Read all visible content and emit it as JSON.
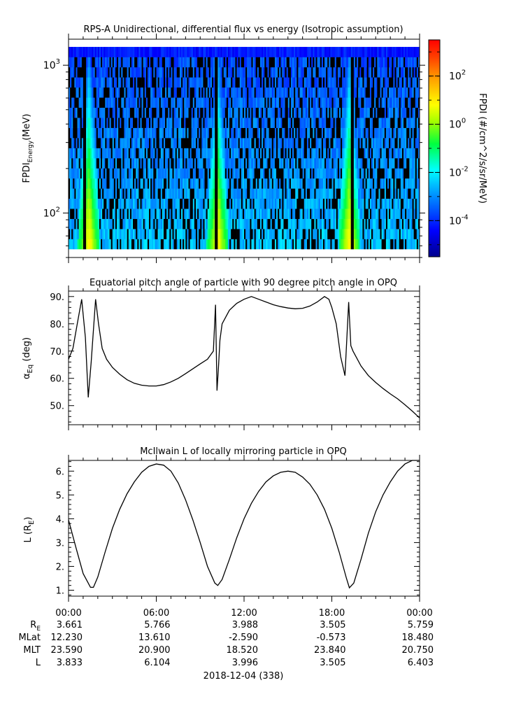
{
  "chart_data": [
    {
      "type": "heatmap",
      "title": "RPS-A Unidirectional, differential flux vs energy (Isotropic assumption)",
      "ylabel_main": "FPDI",
      "ylabel_sub": "Energy",
      "ylabel_unit": "(MeV)",
      "yscale": "log",
      "ylim": [
        50,
        1500
      ],
      "y_ticks": [
        {
          "value": 100,
          "base": "10",
          "exp": "2"
        },
        {
          "value": 1000,
          "base": "10",
          "exp": "3"
        }
      ],
      "colorbar": {
        "label": "FPDI (#/cm^2/s/sr/MeV)",
        "scale": "log",
        "range_log10": [
          -5.5,
          3.5
        ],
        "ticks": [
          {
            "value": 2,
            "base": "10",
            "exp": "2"
          },
          {
            "value": 0,
            "base": "10",
            "exp": "0"
          },
          {
            "value": -2,
            "base": "10",
            "exp": "-2"
          },
          {
            "value": -4,
            "base": "10",
            "exp": "-4"
          }
        ]
      },
      "energy_channels": 20,
      "time_bins": 240,
      "enhancement_times_hours": [
        1.4,
        10.2,
        19.2
      ],
      "gap_times_hours": [
        1.1,
        10.1,
        19.4
      ],
      "background_level_log10": -2.5
    },
    {
      "type": "line",
      "title": "Equatorial pitch angle of particle with 90 degree pitch angle in OPQ",
      "ylabel_main": "α",
      "ylabel_sub": "Eq",
      "ylabel_unit": " (deg)",
      "ylim": [
        43,
        92
      ],
      "y_ticks": [
        "50.",
        "60.",
        "70.",
        "80.",
        "90."
      ],
      "x_hours": [
        0,
        0.3,
        0.6,
        0.9,
        1.15,
        1.35,
        1.55,
        1.85,
        2.05,
        2.3,
        2.6,
        3,
        3.5,
        4,
        4.5,
        5,
        5.5,
        6,
        6.5,
        7,
        7.5,
        8,
        8.5,
        9,
        9.5,
        9.9,
        10.05,
        10.15,
        10.25,
        10.35,
        10.5,
        11,
        11.5,
        12,
        12.5,
        13,
        13.5,
        14,
        14.5,
        15,
        15.5,
        16,
        16.5,
        17,
        17.5,
        17.8,
        18,
        18.3,
        18.6,
        18.9,
        19.15,
        19.3,
        19.45,
        19.55,
        20,
        20.5,
        21,
        21.5,
        22,
        22.5,
        23,
        23.5,
        24
      ],
      "y_deg": [
        67,
        71,
        80,
        89,
        75,
        53,
        66,
        89,
        80,
        71,
        67,
        64,
        61.5,
        59.5,
        58.2,
        57.5,
        57.2,
        57.2,
        57.7,
        58.7,
        60,
        61.7,
        63.5,
        65.3,
        67,
        70,
        87,
        55.5,
        64,
        74,
        80,
        85,
        87.5,
        89,
        90,
        89,
        88,
        87,
        86.3,
        85.8,
        85.5,
        85.7,
        86.5,
        88,
        90,
        89,
        86,
        80,
        68,
        61,
        88,
        72,
        70,
        69,
        64.5,
        61,
        58.5,
        56.3,
        54.3,
        52.5,
        50.3,
        48,
        45.5
      ]
    },
    {
      "type": "line",
      "title": "McIlwain L of locally mirroring particle in OPQ",
      "ylabel_main": "L (R",
      "ylabel_sub": "E",
      "ylabel_unit": ")",
      "ylim": [
        0.75,
        6.45
      ],
      "y_ticks": [
        "1.",
        "2.",
        "3.",
        "4.",
        "5.",
        "6."
      ],
      "x_hours": [
        0,
        0.5,
        1,
        1.5,
        1.7,
        2,
        2.5,
        3,
        3.5,
        4,
        4.5,
        5,
        5.5,
        6,
        6.5,
        7,
        7.5,
        8,
        8.5,
        9,
        9.5,
        10,
        10.2,
        10.5,
        11,
        11.5,
        12,
        12.5,
        13,
        13.5,
        14,
        14.5,
        15,
        15.5,
        16,
        16.5,
        17,
        17.5,
        18,
        18.5,
        19,
        19.2,
        19.5,
        20,
        20.5,
        21,
        21.5,
        22,
        22.5,
        23,
        23.5,
        24
      ],
      "y": [
        3.95,
        2.8,
        1.7,
        1.12,
        1.12,
        1.55,
        2.6,
        3.6,
        4.4,
        5.05,
        5.55,
        5.95,
        6.2,
        6.3,
        6.25,
        6.0,
        5.5,
        4.8,
        3.95,
        3.0,
        2.0,
        1.3,
        1.2,
        1.45,
        2.3,
        3.2,
        4.0,
        4.65,
        5.15,
        5.55,
        5.8,
        5.95,
        6.0,
        5.95,
        5.75,
        5.45,
        5.0,
        4.4,
        3.6,
        2.6,
        1.5,
        1.1,
        1.3,
        2.3,
        3.4,
        4.3,
        5.0,
        5.55,
        6.0,
        6.3,
        6.5,
        6.6
      ]
    }
  ],
  "x_axis": {
    "tick_labels": [
      "00:00",
      "06:00",
      "12:00",
      "18:00",
      "00:00"
    ],
    "tick_hours": [
      0,
      6,
      12,
      18,
      24
    ],
    "minor_step_hours": 1,
    "date_label": "2018-12-04 (338)"
  },
  "ephemeris": {
    "rows": [
      {
        "label": "R",
        "label_sub": "E",
        "values": [
          "3.661",
          "5.766",
          "3.988",
          "3.505",
          "5.759"
        ]
      },
      {
        "label": "MLat",
        "label_sub": "",
        "values": [
          "12.230",
          "13.610",
          "-2.590",
          "-0.573",
          "18.480"
        ]
      },
      {
        "label": "MLT",
        "label_sub": "",
        "values": [
          "23.590",
          "20.900",
          "18.520",
          "23.840",
          "20.750"
        ]
      },
      {
        "label": "L",
        "label_sub": "",
        "values": [
          "3.833",
          "6.104",
          "3.996",
          "3.505",
          "6.403"
        ]
      }
    ]
  }
}
